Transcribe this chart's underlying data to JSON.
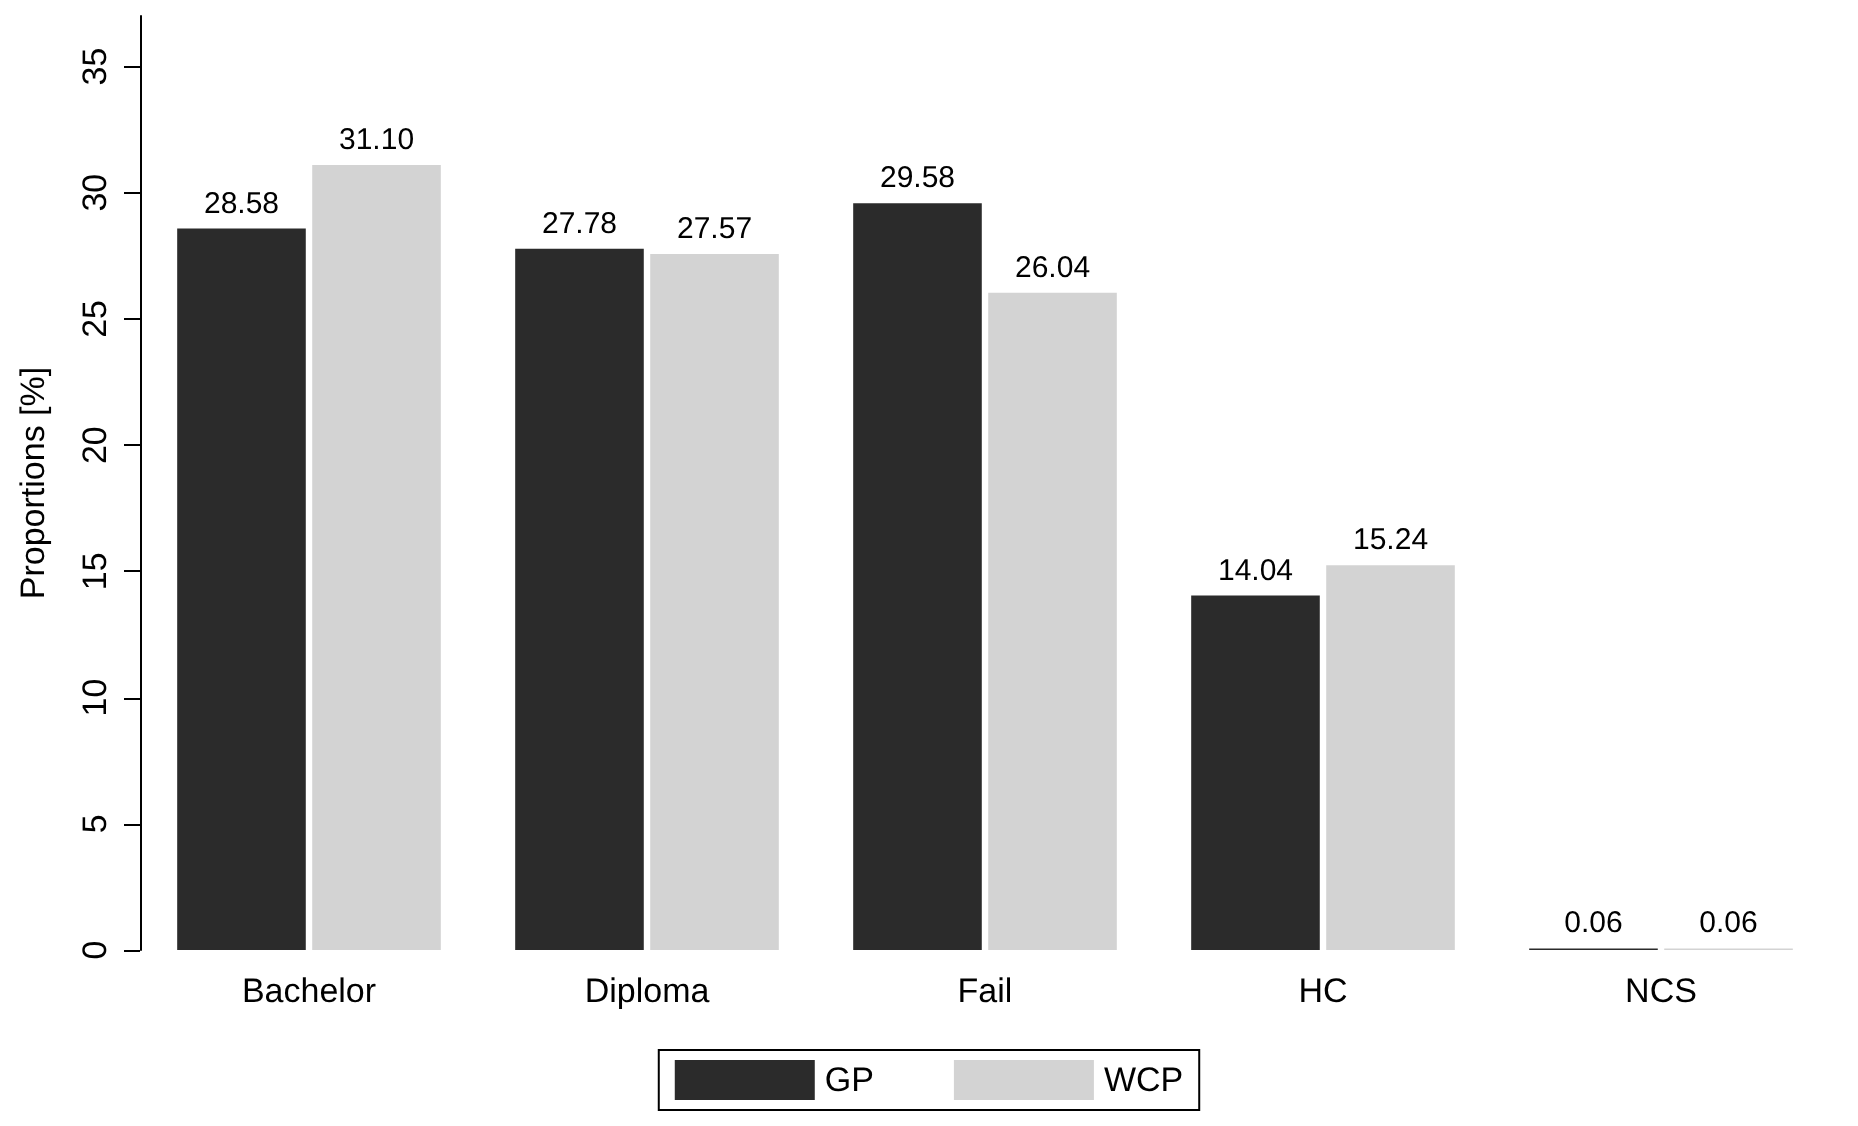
{
  "chart_data": {
    "type": "bar",
    "ylabel": "Proportions [%]",
    "categories": [
      "Bachelor",
      "Diploma",
      "Fail",
      "HC",
      "NCS"
    ],
    "series": [
      {
        "name": "GP",
        "color": "#2b2b2b",
        "values": [
          28.58,
          27.78,
          29.58,
          14.04,
          0.06
        ],
        "value_labels": [
          "28.58",
          "27.78",
          "29.58",
          "14.04",
          "0.06"
        ]
      },
      {
        "name": "WCP",
        "color": "#d3d3d3",
        "values": [
          31.1,
          27.57,
          26.04,
          15.24,
          0.06
        ],
        "value_labels": [
          "31.10",
          "27.57",
          "26.04",
          "15.24",
          "0.06"
        ]
      }
    ],
    "ylim": [
      0,
      37
    ],
    "yticks": [
      0,
      5,
      10,
      15,
      20,
      25,
      30,
      35
    ],
    "grid": false,
    "legend": "bottom"
  }
}
